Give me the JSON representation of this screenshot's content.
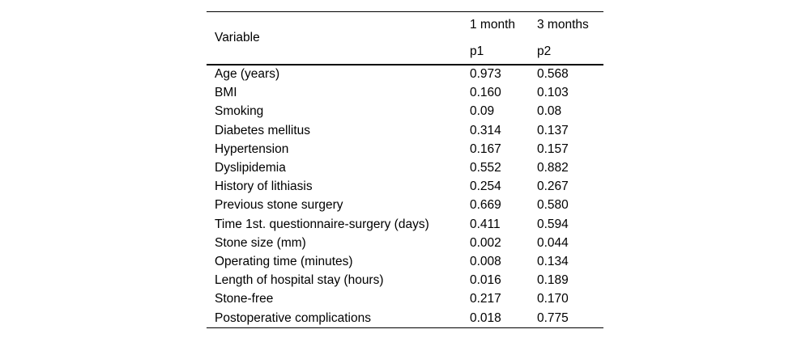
{
  "page": {
    "background": "#ffffff",
    "text_color": "#000000",
    "rule_color": "#000000"
  },
  "table": {
    "header": {
      "variable_label": "Variable",
      "col1": {
        "line1": "1 month",
        "line2": "p1"
      },
      "col2": {
        "line1": "3 months",
        "line2": "p2"
      }
    },
    "rows": [
      {
        "variable": "Age (years)",
        "p1": "0.973",
        "p2": "0.568"
      },
      {
        "variable": "BMI",
        "p1": "0.160",
        "p2": "0.103"
      },
      {
        "variable": "Smoking",
        "p1": "0.09",
        "p2": "0.08"
      },
      {
        "variable": "Diabetes mellitus",
        "p1": "0.314",
        "p2": "0.137"
      },
      {
        "variable": "Hypertension",
        "p1": "0.167",
        "p2": "0.157"
      },
      {
        "variable": "Dyslipidemia",
        "p1": "0.552",
        "p2": "0.882"
      },
      {
        "variable": "History of lithiasis",
        "p1": "0.254",
        "p2": "0.267"
      },
      {
        "variable": "Previous stone surgery",
        "p1": "0.669",
        "p2": "0.580"
      },
      {
        "variable": "Time 1st. questionnaire-surgery (days)",
        "p1": "0.411",
        "p2": "0.594"
      },
      {
        "variable": "Stone size (mm)",
        "p1": "0.002",
        "p2": "0.044"
      },
      {
        "variable": "Operating time (minutes)",
        "p1": "0.008",
        "p2": "0.134"
      },
      {
        "variable": "Length of hospital stay (hours)",
        "p1": "0.016",
        "p2": "0.189"
      },
      {
        "variable": "Stone-free",
        "p1": "0.217",
        "p2": "0.170"
      },
      {
        "variable": "Postoperative complications",
        "p1": "0.018",
        "p2": "0.775"
      }
    ]
  }
}
